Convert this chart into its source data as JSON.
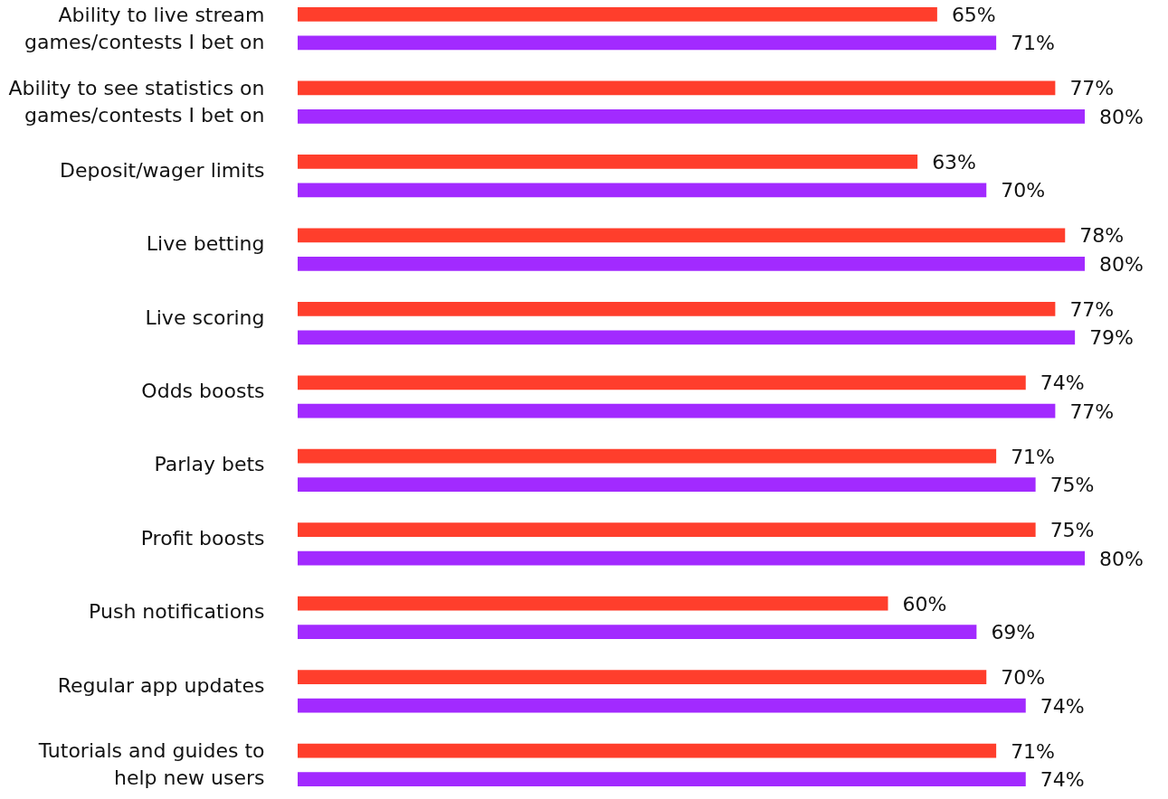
{
  "chart_data": {
    "type": "bar",
    "orientation": "horizontal",
    "categories": [
      "Ability to live stream\ngames/contests I bet on",
      "Ability to see statistics on\ngames/contests I bet on",
      "Deposit/wager limits",
      "Live betting",
      "Live scoring",
      "Odds boosts",
      "Parlay bets",
      "Profit boosts",
      "Push notifications",
      "Regular app updates",
      "Tutorials and guides to\nhelp new users"
    ],
    "series": [
      {
        "color": "#ff3e2c",
        "values": [
          65,
          77,
          63,
          78,
          77,
          74,
          71,
          75,
          60,
          70,
          71
        ],
        "value_labels": [
          "65%",
          "77%",
          "63%",
          "78%",
          "77%",
          "74%",
          "71%",
          "75%",
          "60%",
          "70%",
          "71%"
        ]
      },
      {
        "color": "#a22aff",
        "values": [
          71,
          80,
          70,
          80,
          79,
          77,
          75,
          80,
          69,
          74,
          74
        ],
        "value_labels": [
          "71%",
          "80%",
          "70%",
          "80%",
          "79%",
          "77%",
          "75%",
          "80%",
          "69%",
          "74%",
          "74%"
        ]
      }
    ]
  }
}
